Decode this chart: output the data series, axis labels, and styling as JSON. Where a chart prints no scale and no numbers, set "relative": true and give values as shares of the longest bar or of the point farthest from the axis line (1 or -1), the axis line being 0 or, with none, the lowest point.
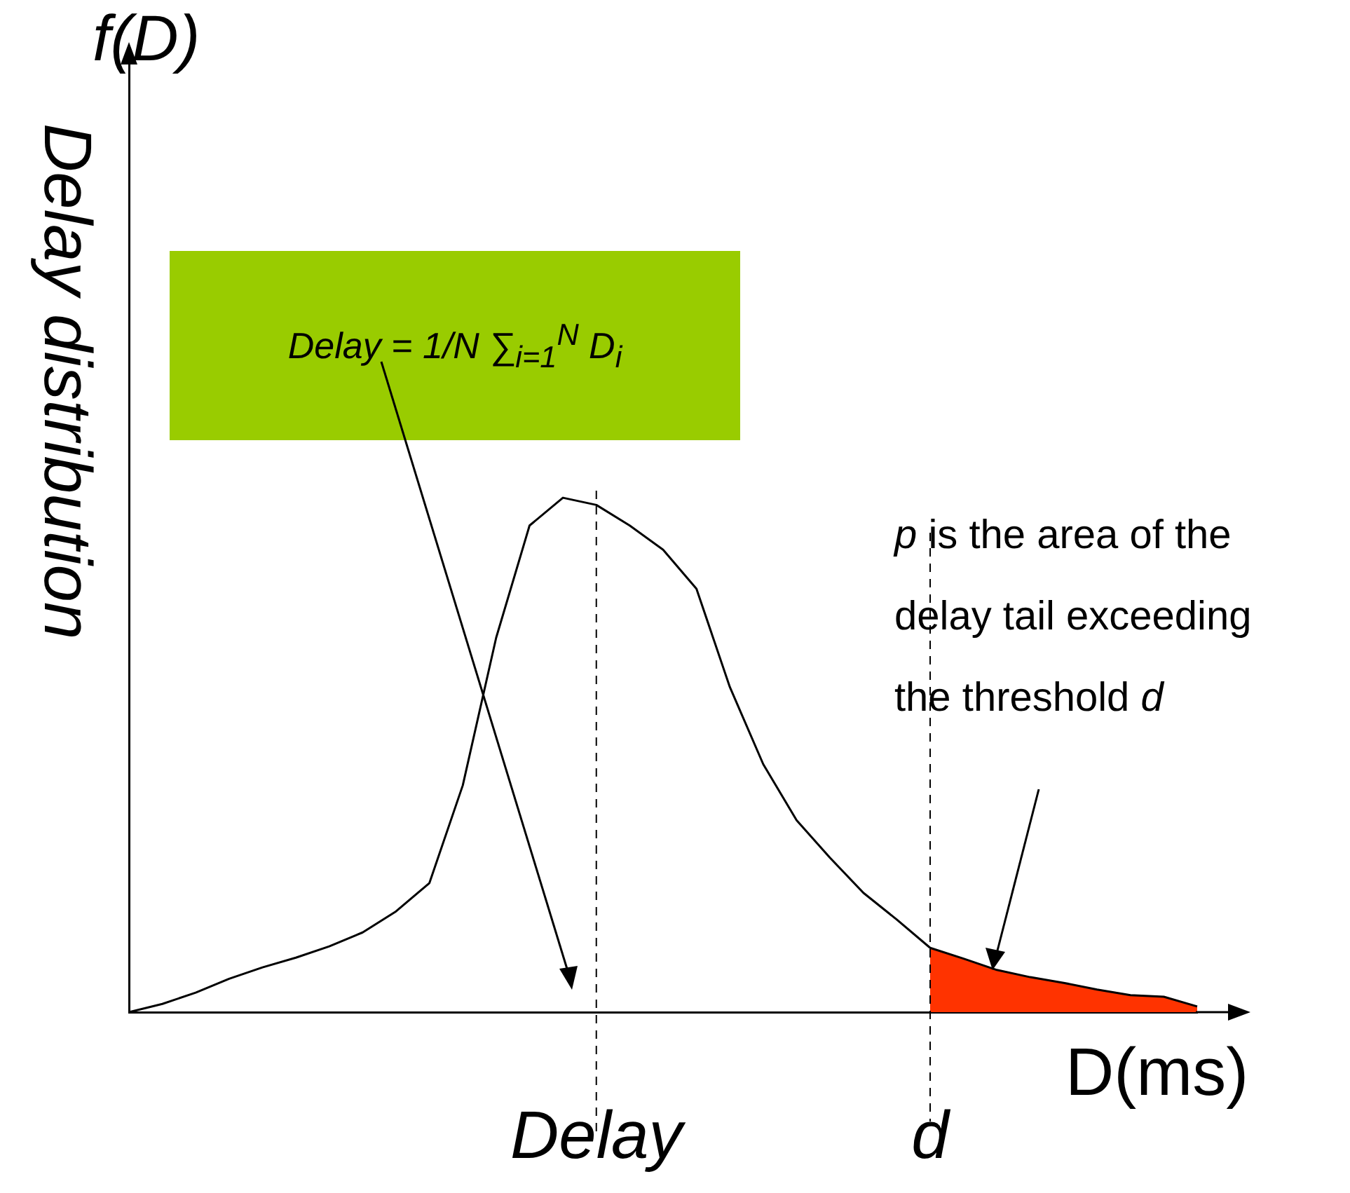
{
  "chart_data": {
    "type": "line",
    "relative": true,
    "ylabel": "Delay distribution",
    "xlabel": "D(ms)",
    "tick_labels": "x",
    "grid": false,
    "legend": false,
    "marker": "none",
    "line_style": "solid",
    "categories": [
      null,
      null,
      null,
      null,
      null,
      null,
      null,
      null,
      null,
      null,
      null,
      null,
      null,
      null,
      "Delay",
      null,
      null,
      null,
      null,
      null,
      null,
      null,
      null,
      null,
      "d",
      null,
      null,
      null,
      null,
      null,
      null,
      null,
      null
    ],
    "annotations": [
      "f(D)",
      "Delay = 1/N ∑$_{i=1}$$^{N}$ D$_{i}$",
      "p is the area of the delay tail exceeding the threshold d"
    ],
    "series": [
      {
        "color": "#000000",
        "values": [
          0,
          0.016,
          0.038,
          0.065,
          0.087,
          0.106,
          0.128,
          0.155,
          0.196,
          0.251,
          0.441,
          0.728,
          0.946,
          1,
          0.986,
          0.946,
          0.899,
          0.823,
          0.632,
          0.482,
          0.373,
          0.3,
          0.232,
          0.18,
          0.125,
          0.104,
          0.082,
          0.068,
          0.057,
          0.044,
          0.033,
          0.03,
          0.011
        ]
      },
      {
        "type": "area",
        "color": "#ff3300",
        "values": [
          null,
          null,
          null,
          null,
          null,
          null,
          null,
          null,
          null,
          null,
          null,
          null,
          null,
          null,
          null,
          null,
          null,
          null,
          null,
          null,
          null,
          null,
          null,
          null,
          0.125,
          0.104,
          0.082,
          0.068,
          0.057,
          0.044,
          0.033,
          0.03,
          0.011
        ]
      }
    ],
    "ref_lines": [
      {
        "axis": "x",
        "value": "Delay",
        "line_style": "dashed"
      },
      {
        "axis": "x",
        "value": "d",
        "line_style": "dashed"
      }
    ]
  }
}
